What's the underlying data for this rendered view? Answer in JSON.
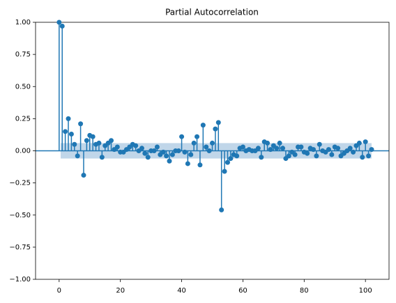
{
  "chart_data": {
    "type": "stem",
    "title": "Partial Autocorrelation",
    "x": [
      0,
      1,
      2,
      3,
      4,
      5,
      6,
      7,
      8,
      9,
      10,
      11,
      12,
      13,
      14,
      15,
      16,
      17,
      18,
      19,
      20,
      21,
      22,
      23,
      24,
      25,
      26,
      27,
      28,
      29,
      30,
      31,
      32,
      33,
      34,
      35,
      36,
      37,
      38,
      39,
      40,
      41,
      42,
      43,
      44,
      45,
      46,
      47,
      48,
      49,
      50,
      51,
      52,
      53,
      54,
      55,
      56,
      57,
      58,
      59,
      60,
      61,
      62,
      63,
      64,
      65,
      66,
      67,
      68,
      69,
      70,
      71,
      72,
      73,
      74,
      75,
      76,
      77,
      78,
      79,
      80,
      81,
      82,
      83,
      84,
      85,
      86,
      87,
      88,
      89,
      90,
      91,
      92,
      93,
      94,
      95,
      96,
      97,
      98,
      99,
      100,
      101,
      102
    ],
    "values": [
      1.0,
      0.97,
      0.15,
      0.25,
      0.13,
      0.05,
      -0.04,
      0.21,
      -0.19,
      0.08,
      0.12,
      0.11,
      0.05,
      0.06,
      -0.05,
      0.04,
      0.06,
      0.08,
      0.01,
      0.03,
      -0.01,
      -0.01,
      0.01,
      0.03,
      0.05,
      0.04,
      0.0,
      0.02,
      -0.02,
      -0.05,
      0.0,
      0.0,
      0.03,
      -0.03,
      -0.01,
      -0.04,
      -0.08,
      -0.03,
      0.0,
      0.0,
      0.11,
      -0.01,
      -0.1,
      -0.03,
      0.06,
      0.11,
      -0.11,
      0.2,
      0.03,
      0.0,
      0.06,
      0.17,
      0.22,
      -0.46,
      -0.16,
      -0.09,
      -0.06,
      -0.03,
      -0.04,
      0.02,
      0.03,
      0.0,
      0.01,
      0.0,
      0.0,
      0.02,
      -0.05,
      0.07,
      0.06,
      0.01,
      0.04,
      0.02,
      0.06,
      0.02,
      -0.06,
      -0.04,
      -0.01,
      -0.03,
      0.03,
      0.03,
      -0.01,
      -0.02,
      0.02,
      0.01,
      -0.04,
      0.05,
      0.0,
      -0.01,
      0.01,
      -0.03,
      0.03,
      0.02,
      -0.04,
      -0.02,
      0.0,
      0.02,
      -0.01,
      0.04,
      0.06,
      -0.05,
      0.07,
      -0.04,
      0.01
    ],
    "color": "#1f77b4",
    "confidence_band": 0.06,
    "band_color": "#b0cce4",
    "xlim": [
      -7.7,
      107.7
    ],
    "xticks": [
      0,
      20,
      40,
      60,
      80,
      100
    ],
    "ylim": [
      -1,
      1
    ],
    "yticks": [
      {
        "value": -1,
        "label": "−1.00"
      },
      {
        "value": -0.75,
        "label": "−0.75"
      },
      {
        "value": -0.5,
        "label": "−0.50"
      },
      {
        "value": -0.25,
        "label": "−0.25"
      },
      {
        "value": 0,
        "label": "0.00"
      },
      {
        "value": 0.25,
        "label": "0.25"
      },
      {
        "value": 0.5,
        "label": "0.50"
      },
      {
        "value": 0.75,
        "label": "0.75"
      },
      {
        "value": 1,
        "label": "1.00"
      }
    ]
  }
}
